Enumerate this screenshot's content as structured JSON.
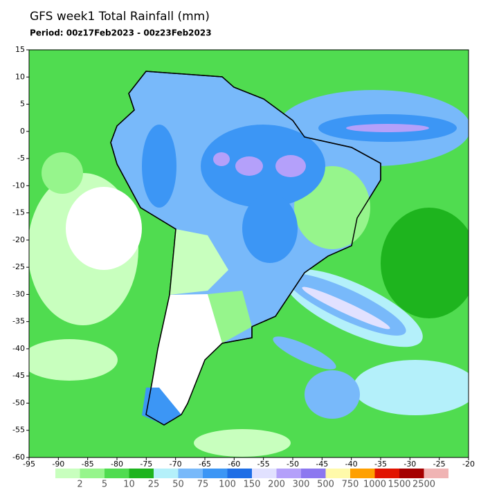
{
  "title": "GFS week1 Total Rainfall (mm)",
  "subtitle": "Period: 00z17Feb2023 - 00z23Feb2023",
  "map": {
    "lon_ticks": [
      -95,
      -90,
      -85,
      -80,
      -75,
      -70,
      -65,
      -60,
      -55,
      -50,
      -45,
      -40,
      -35,
      -30,
      -25,
      -20
    ],
    "lat_ticks": [
      15,
      10,
      5,
      0,
      -5,
      -10,
      -15,
      -20,
      -25,
      -30,
      -35,
      -40,
      -45,
      -50,
      -55,
      -60
    ]
  },
  "legend": {
    "labels": [
      2,
      5,
      10,
      25,
      50,
      75,
      100,
      150,
      200,
      300,
      500,
      750,
      1000,
      1500,
      2500
    ],
    "colors": [
      "#c8ffbe",
      "#96f58c",
      "#50dc50",
      "#1eb41e",
      "#b4f0fa",
      "#78b9fa",
      "#3c96f5",
      "#1e6ee6",
      "#e1e1ff",
      "#b4a0fa",
      "#8c78f0",
      "#fffaaa",
      "#ffa000",
      "#e11400",
      "#a50000",
      "#f0b4b4"
    ]
  }
}
